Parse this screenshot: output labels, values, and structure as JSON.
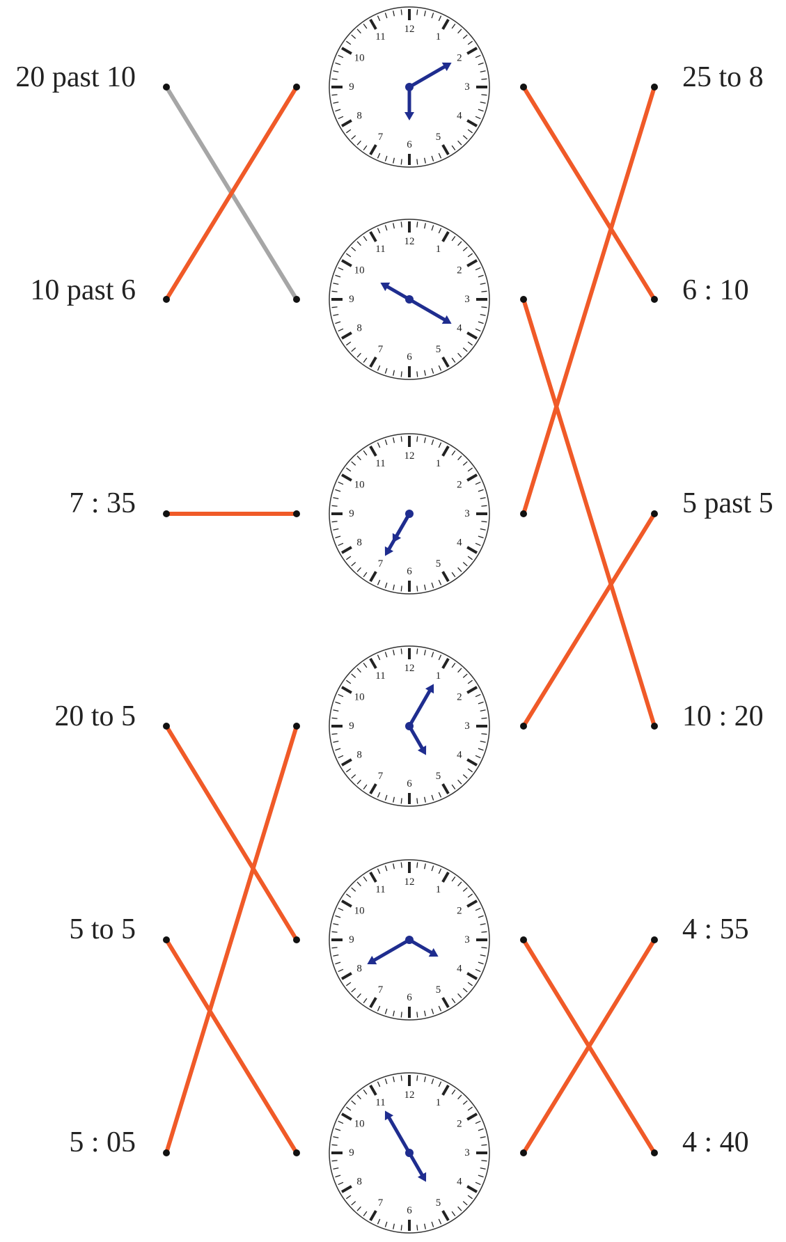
{
  "left_labels": [
    "20 past 10",
    "10 past 6",
    "7 : 35",
    "20 to 5",
    "5 to 5",
    "5 : 05"
  ],
  "right_labels": [
    "25 to 8",
    "6 : 10",
    "5 past 5",
    "10 : 20",
    "4 : 55",
    "4 : 40"
  ],
  "clocks": [
    {
      "hour_hand_points_to": 6,
      "minute_hand_points_to": 2
    },
    {
      "hour_hand_points_to": 10,
      "minute_hand_points_to": 4
    },
    {
      "hour_hand_points_to": 7,
      "minute_hand_points_to": 7
    },
    {
      "hour_hand_points_to": 5,
      "minute_hand_points_to": 1
    },
    {
      "hour_hand_points_to": 4,
      "minute_hand_points_to": 8
    },
    {
      "hour_hand_points_to": 5,
      "minute_hand_points_to": 11
    }
  ],
  "clock_numerals": [
    "12",
    "1",
    "2",
    "3",
    "4",
    "5",
    "6",
    "7",
    "8",
    "9",
    "10",
    "11"
  ],
  "left_connections": [
    {
      "from_label": 0,
      "to_clock": 1,
      "color": "#a6a6a6"
    },
    {
      "from_label": 1,
      "to_clock": 0,
      "color": "#f05a28"
    },
    {
      "from_label": 2,
      "to_clock": 2,
      "color": "#f05a28"
    },
    {
      "from_label": 3,
      "to_clock": 4,
      "color": "#f05a28"
    },
    {
      "from_label": 4,
      "to_clock": 5,
      "color": "#f05a28"
    },
    {
      "from_label": 5,
      "to_clock": 3,
      "color": "#f05a28"
    }
  ],
  "right_connections": [
    {
      "from_clock": 0,
      "to_label": 1,
      "color": "#f05a28"
    },
    {
      "from_clock": 1,
      "to_label": 3,
      "color": "#f05a28"
    },
    {
      "from_clock": 2,
      "to_label": 0,
      "color": "#f05a28"
    },
    {
      "from_clock": 3,
      "to_label": 2,
      "color": "#f05a28"
    },
    {
      "from_clock": 4,
      "to_label": 5,
      "color": "#f05a28"
    },
    {
      "from_clock": 5,
      "to_label": 4,
      "color": "#f05a28"
    }
  ],
  "colors": {
    "hands": "#1f2d8f",
    "dial_stroke": "#333333",
    "marks": "#222222",
    "dots": "#111111"
  }
}
